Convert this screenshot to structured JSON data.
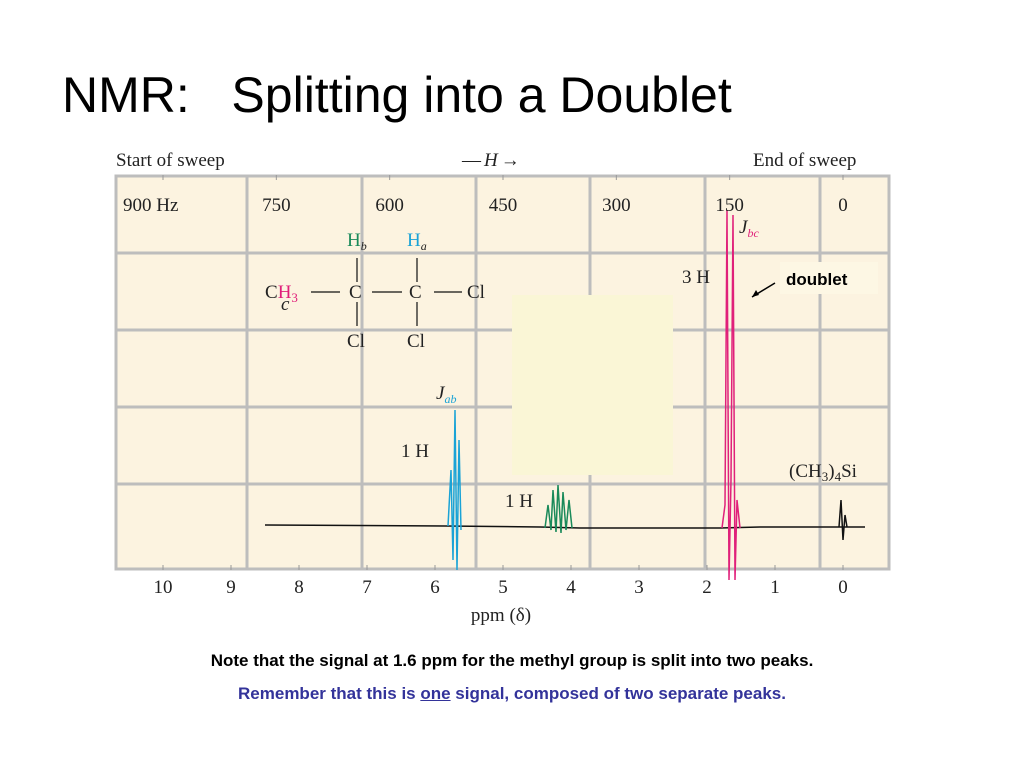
{
  "title": "NMR:   Splitting into a Doublet",
  "spectrum": {
    "sweep_start": "Start of sweep",
    "sweep_direction": {
      "dash": "—",
      "field": "H",
      "arrow": "→"
    },
    "sweep_end": "End of sweep",
    "hz_ticks": [
      {
        "value": 900,
        "label": "900 Hz"
      },
      750,
      600,
      450,
      300,
      150,
      0
    ],
    "ppm_ticks": [
      10,
      9,
      8,
      7,
      6,
      5,
      4,
      3,
      2,
      1,
      0
    ],
    "x_label": "ppm (δ)",
    "molecule": {
      "hb": {
        "main": "H",
        "sub": "b"
      },
      "ha": {
        "main": "H",
        "sub": "a"
      },
      "ch3": {
        "c": "C",
        "h": "H",
        "n": "3",
        "sub": "c"
      },
      "carbons": [
        "C",
        "C"
      ],
      "chlorines": [
        "Cl",
        "Cl",
        "Cl"
      ]
    },
    "peak_labels": {
      "j_bc": {
        "main": "J",
        "sub": "bc"
      },
      "j_ab": {
        "main": "J",
        "sub": "ab"
      },
      "h3": "3 H",
      "h1_a": "1 H",
      "h1_b": "1 H",
      "tms": {
        "a": "(CH",
        "b": "3",
        "c": ")",
        "d": "4",
        "e": "Si"
      }
    },
    "callout": "doublet"
  },
  "notes": {
    "line1": "Note that the signal at 1.6 ppm for the methyl group is split into two peaks.",
    "line2": {
      "before": "Remember that this is ",
      "emph": "one",
      "after": " signal, composed of two separate peaks."
    }
  }
}
